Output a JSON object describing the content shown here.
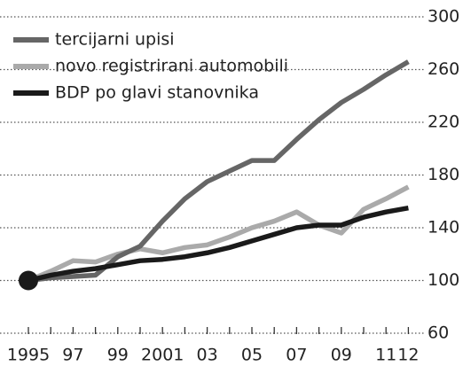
{
  "chart_data": {
    "type": "line",
    "categories": [
      "1995",
      null,
      "97",
      null,
      "99",
      null,
      "2001",
      null,
      "03",
      null,
      "05",
      null,
      "07",
      null,
      "09",
      null,
      "11",
      "12"
    ],
    "series": [
      {
        "name": "tercijarni upisi",
        "color": "#666666",
        "values": [
          100,
          102,
          103,
          104,
          118,
          126,
          145,
          162,
          175,
          183,
          191,
          191,
          207,
          222,
          235,
          245,
          256,
          266
        ]
      },
      {
        "name": "novo registrirani automobili",
        "color": "#aaaaaa",
        "values": [
          100,
          107,
          115,
          114,
          120,
          124,
          121,
          125,
          127,
          133,
          140,
          145,
          152,
          142,
          136,
          154,
          162,
          171
        ]
      },
      {
        "name": "BDP po glavi stanovnika",
        "color": "#1a1a1a",
        "values": [
          100,
          104,
          107,
          109,
          112,
          115,
          116,
          118,
          121,
          125,
          130,
          135,
          140,
          142,
          142,
          148,
          152,
          155
        ]
      }
    ],
    "ylim": [
      60,
      300
    ],
    "yticks": [
      60,
      100,
      140,
      180,
      220,
      260,
      300
    ],
    "grid": true,
    "legend": "upper left"
  }
}
